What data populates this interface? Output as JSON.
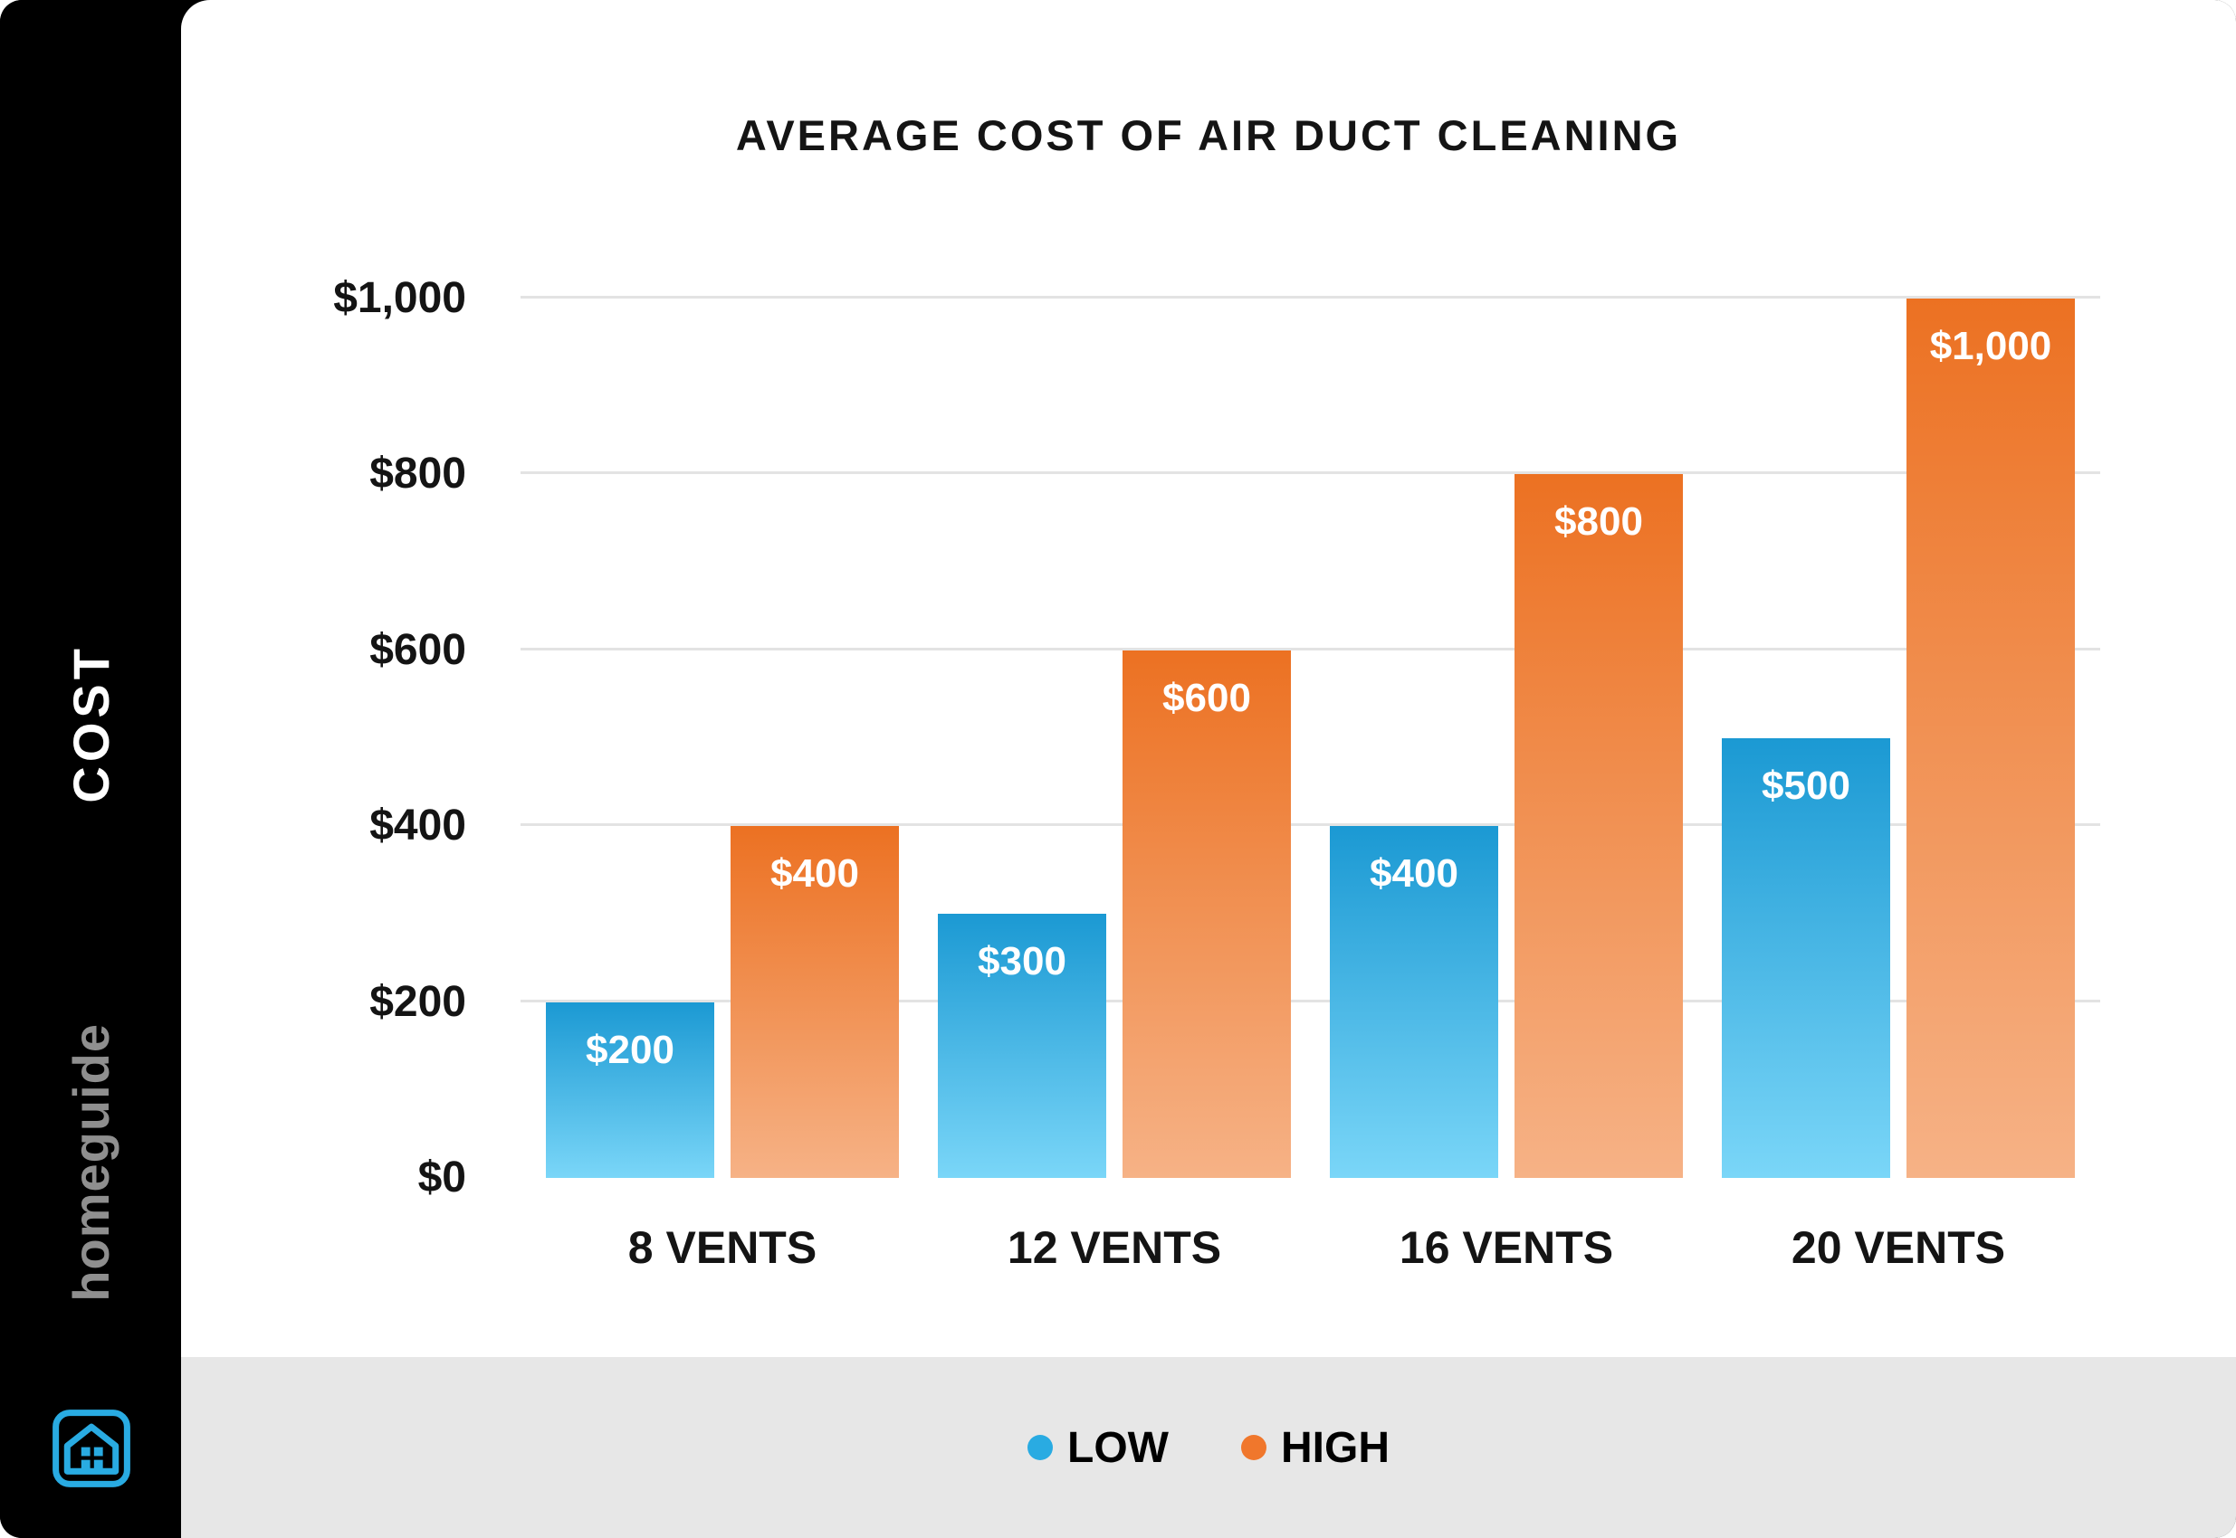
{
  "sidebar": {
    "cost_label": "COST",
    "brand": "homeguide"
  },
  "title": "AVERAGE COST OF AIR DUCT CLEANING",
  "legend": [
    {
      "label": "LOW",
      "color": "#29abe2"
    },
    {
      "label": "HIGH",
      "color": "#f0772c"
    }
  ],
  "colors": {
    "sidebar_bg": "#000000",
    "card_bg": "#ffffff",
    "legend_strip_bg": "#e7e7e7",
    "gridline": "#e3e3e3",
    "logo_blue": "#29abe2"
  },
  "chart_data": {
    "type": "bar",
    "title": "AVERAGE COST OF AIR DUCT CLEANING",
    "categories": [
      "8 VENTS",
      "12 VENTS",
      "16 VENTS",
      "20 VENTS"
    ],
    "series": [
      {
        "name": "LOW",
        "values": [
          200,
          300,
          400,
          500
        ],
        "labels": [
          "$200",
          "$300",
          "$400",
          "$500"
        ],
        "color_top": "#1b99d3",
        "color_bottom": "#7ad6f8"
      },
      {
        "name": "HIGH",
        "values": [
          400,
          600,
          800,
          1000
        ],
        "labels": [
          "$400",
          "$600",
          "$800",
          "$1,000"
        ],
        "color_top": "#ec7122",
        "color_bottom": "#f6b286"
      }
    ],
    "xlabel": "",
    "ylabel": "COST",
    "ylim": [
      0,
      1000
    ],
    "ytick_labels": [
      "$0",
      "$200",
      "$400",
      "$600",
      "$800",
      "$1,000"
    ],
    "grid": true,
    "legend_position": "bottom"
  }
}
